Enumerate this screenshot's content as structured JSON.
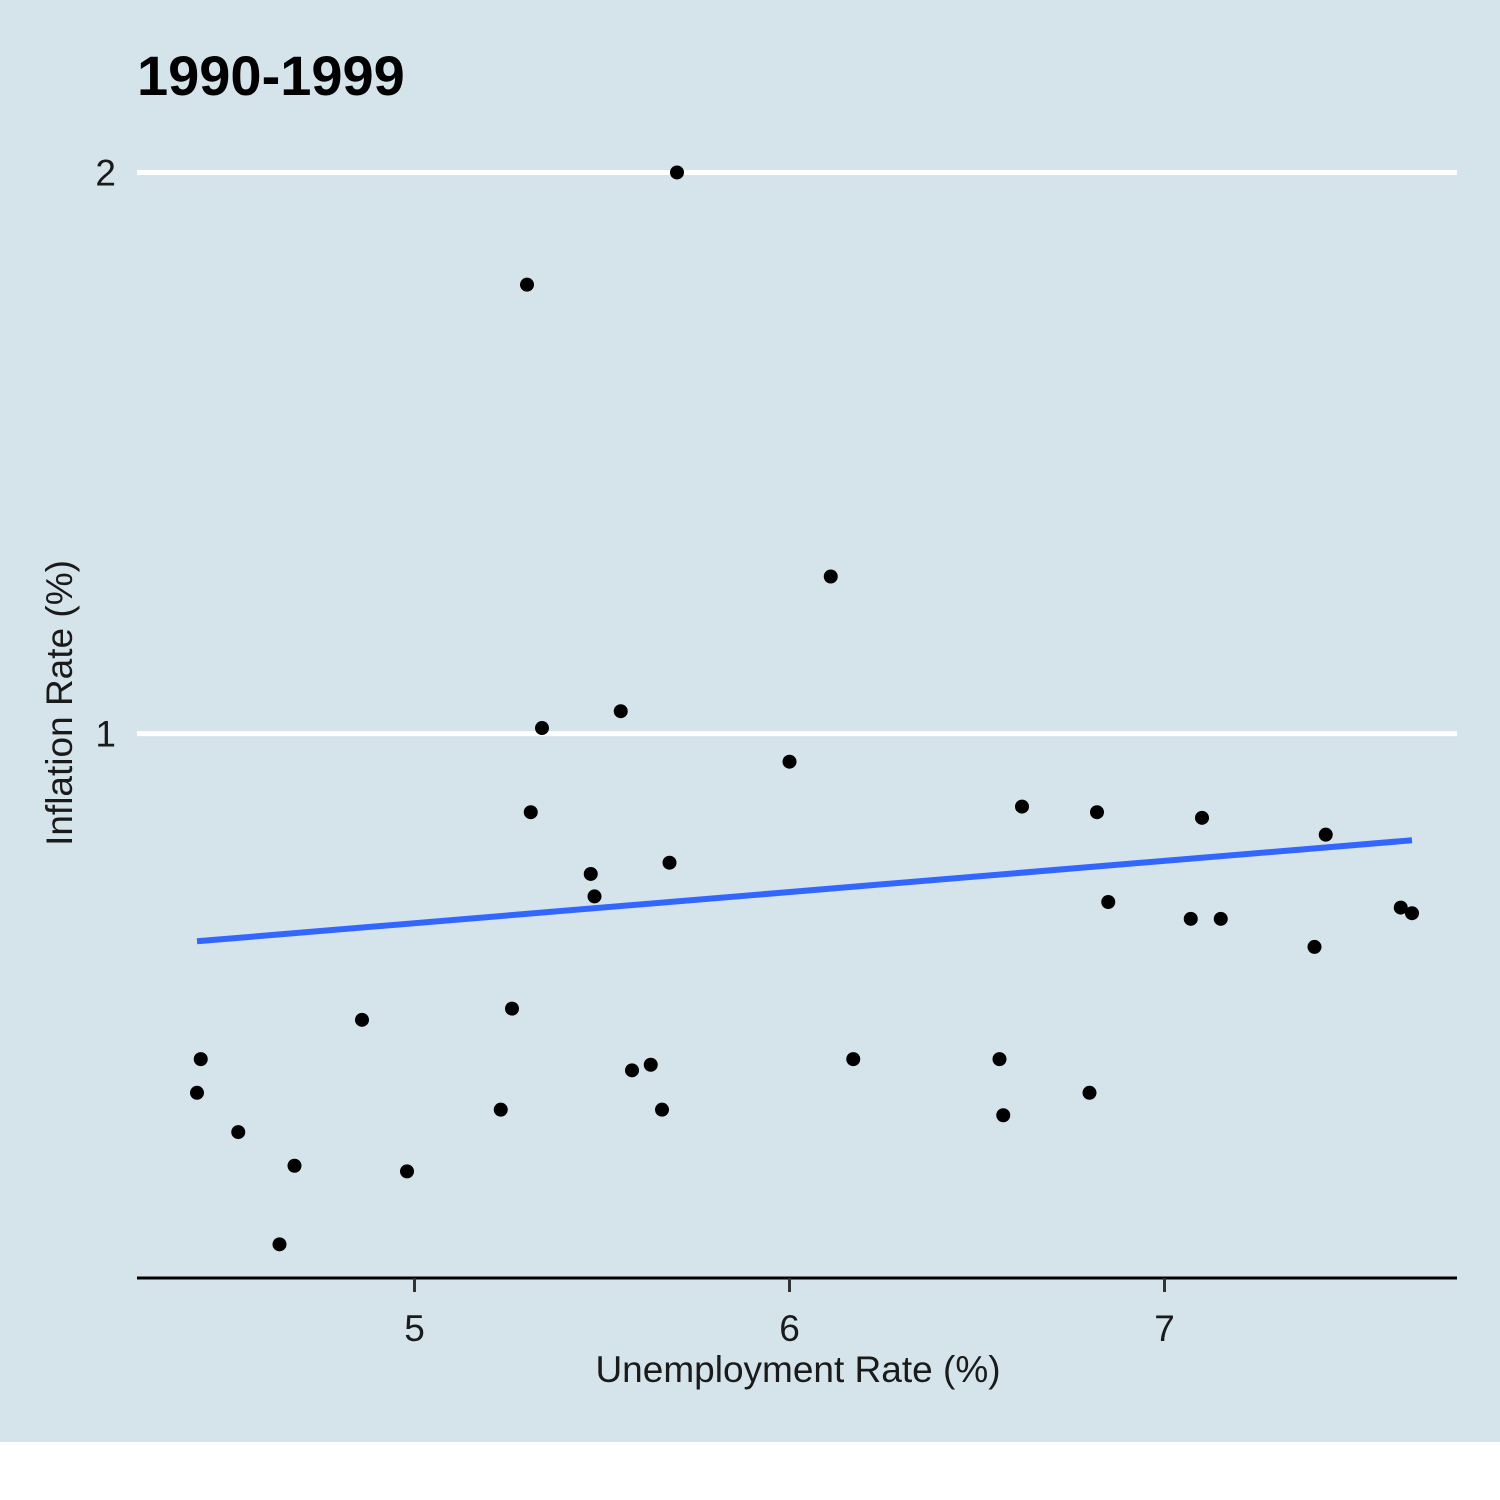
{
  "chart_data": {
    "type": "scatter",
    "title": "1990-1999",
    "xlabel": "Unemployment Rate (%)",
    "ylabel": "Inflation Rate (%)",
    "xlim": [
      4.26,
      7.78
    ],
    "ylim": [
      0.03,
      2.04
    ],
    "x_ticks": [
      5,
      6,
      7
    ],
    "y_ticks": [
      1,
      2
    ],
    "x_tick_labels": [
      "5",
      "6",
      "7"
    ],
    "y_tick_labels": [
      "1",
      "2"
    ],
    "grid": "horizontal major lines only",
    "colors": {
      "background": "#d5e4eb",
      "points": "#000000",
      "trend": "#3366ff",
      "grid": "#ffffff"
    },
    "points": [
      {
        "x": 4.42,
        "y": 0.36
      },
      {
        "x": 4.43,
        "y": 0.42
      },
      {
        "x": 4.53,
        "y": 0.29
      },
      {
        "x": 4.64,
        "y": 0.09
      },
      {
        "x": 4.68,
        "y": 0.23
      },
      {
        "x": 4.86,
        "y": 0.49
      },
      {
        "x": 4.98,
        "y": 0.22
      },
      {
        "x": 5.23,
        "y": 0.33
      },
      {
        "x": 5.26,
        "y": 0.51
      },
      {
        "x": 5.3,
        "y": 1.8
      },
      {
        "x": 5.31,
        "y": 0.86
      },
      {
        "x": 5.34,
        "y": 1.01
      },
      {
        "x": 5.47,
        "y": 0.75
      },
      {
        "x": 5.48,
        "y": 0.71
      },
      {
        "x": 5.55,
        "y": 1.04
      },
      {
        "x": 5.58,
        "y": 0.4
      },
      {
        "x": 5.63,
        "y": 0.41
      },
      {
        "x": 5.66,
        "y": 0.33
      },
      {
        "x": 5.68,
        "y": 0.77
      },
      {
        "x": 5.7,
        "y": 2.0
      },
      {
        "x": 6.0,
        "y": 0.95
      },
      {
        "x": 6.11,
        "y": 1.28
      },
      {
        "x": 6.17,
        "y": 0.42
      },
      {
        "x": 6.56,
        "y": 0.42
      },
      {
        "x": 6.57,
        "y": 0.32
      },
      {
        "x": 6.62,
        "y": 0.87
      },
      {
        "x": 6.8,
        "y": 0.36
      },
      {
        "x": 6.82,
        "y": 0.86
      },
      {
        "x": 6.85,
        "y": 0.7
      },
      {
        "x": 7.07,
        "y": 0.67
      },
      {
        "x": 7.1,
        "y": 0.85
      },
      {
        "x": 7.15,
        "y": 0.67
      },
      {
        "x": 7.4,
        "y": 0.62
      },
      {
        "x": 7.43,
        "y": 0.82
      },
      {
        "x": 7.63,
        "y": 0.69
      },
      {
        "x": 7.66,
        "y": 0.68
      }
    ],
    "trend_line": {
      "type": "linear fit",
      "x": [
        4.42,
        7.66
      ],
      "y": [
        0.63,
        0.81
      ]
    }
  }
}
